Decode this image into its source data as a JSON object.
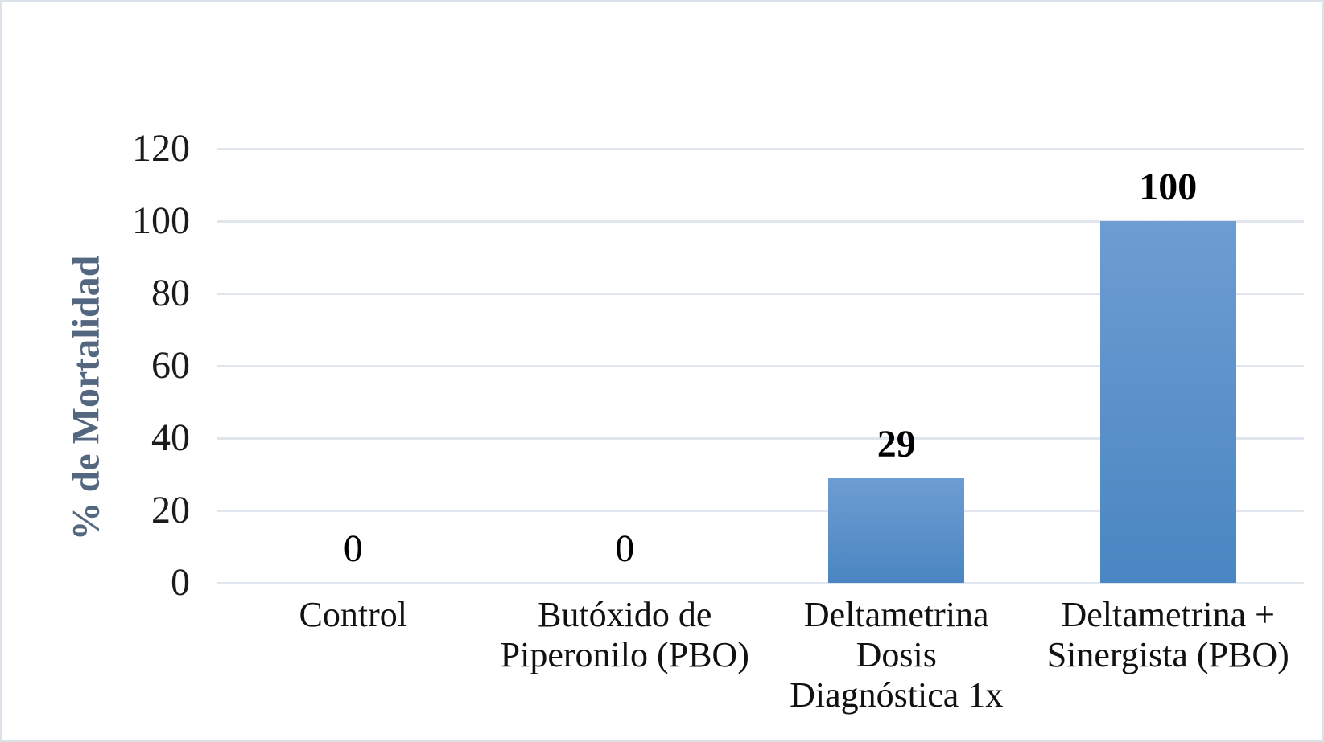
{
  "chart_data": {
    "type": "bar",
    "title": "",
    "xlabel": "",
    "ylabel": "% de Mortalidad",
    "categories": [
      "Control",
      "Butóxido de Piperonilo (PBO)",
      "Deltametrina Dosis Diagnóstica 1x",
      "Deltametrina + Sinergista (PBO)"
    ],
    "category_lines": [
      [
        "Control"
      ],
      [
        "Butóxido de",
        "Piperonilo (PBO)"
      ],
      [
        "Deltametrina Dosis",
        "Diagnóstica 1x"
      ],
      [
        "Deltametrina +",
        "Sinergista (PBO)"
      ]
    ],
    "values": [
      0,
      0,
      29,
      100
    ],
    "data_labels": [
      {
        "text": "0",
        "bold": false
      },
      {
        "text": "0",
        "bold": false
      },
      {
        "text": "29",
        "bold": true
      },
      {
        "text": "100",
        "bold": true
      }
    ],
    "yticks": [
      0,
      20,
      40,
      60,
      80,
      100,
      120
    ],
    "ylim": [
      0,
      120
    ],
    "grid": true,
    "legend": "none",
    "colors": {
      "bar_top": "#6D9DD2",
      "bar_bottom": "#4A86C2",
      "gridline": "#E1E6EE",
      "axis_title": "#546780",
      "tick_label": "#1B1B1B",
      "frame_border": "#DCE2EA",
      "background": "#FFFFFF"
    }
  }
}
